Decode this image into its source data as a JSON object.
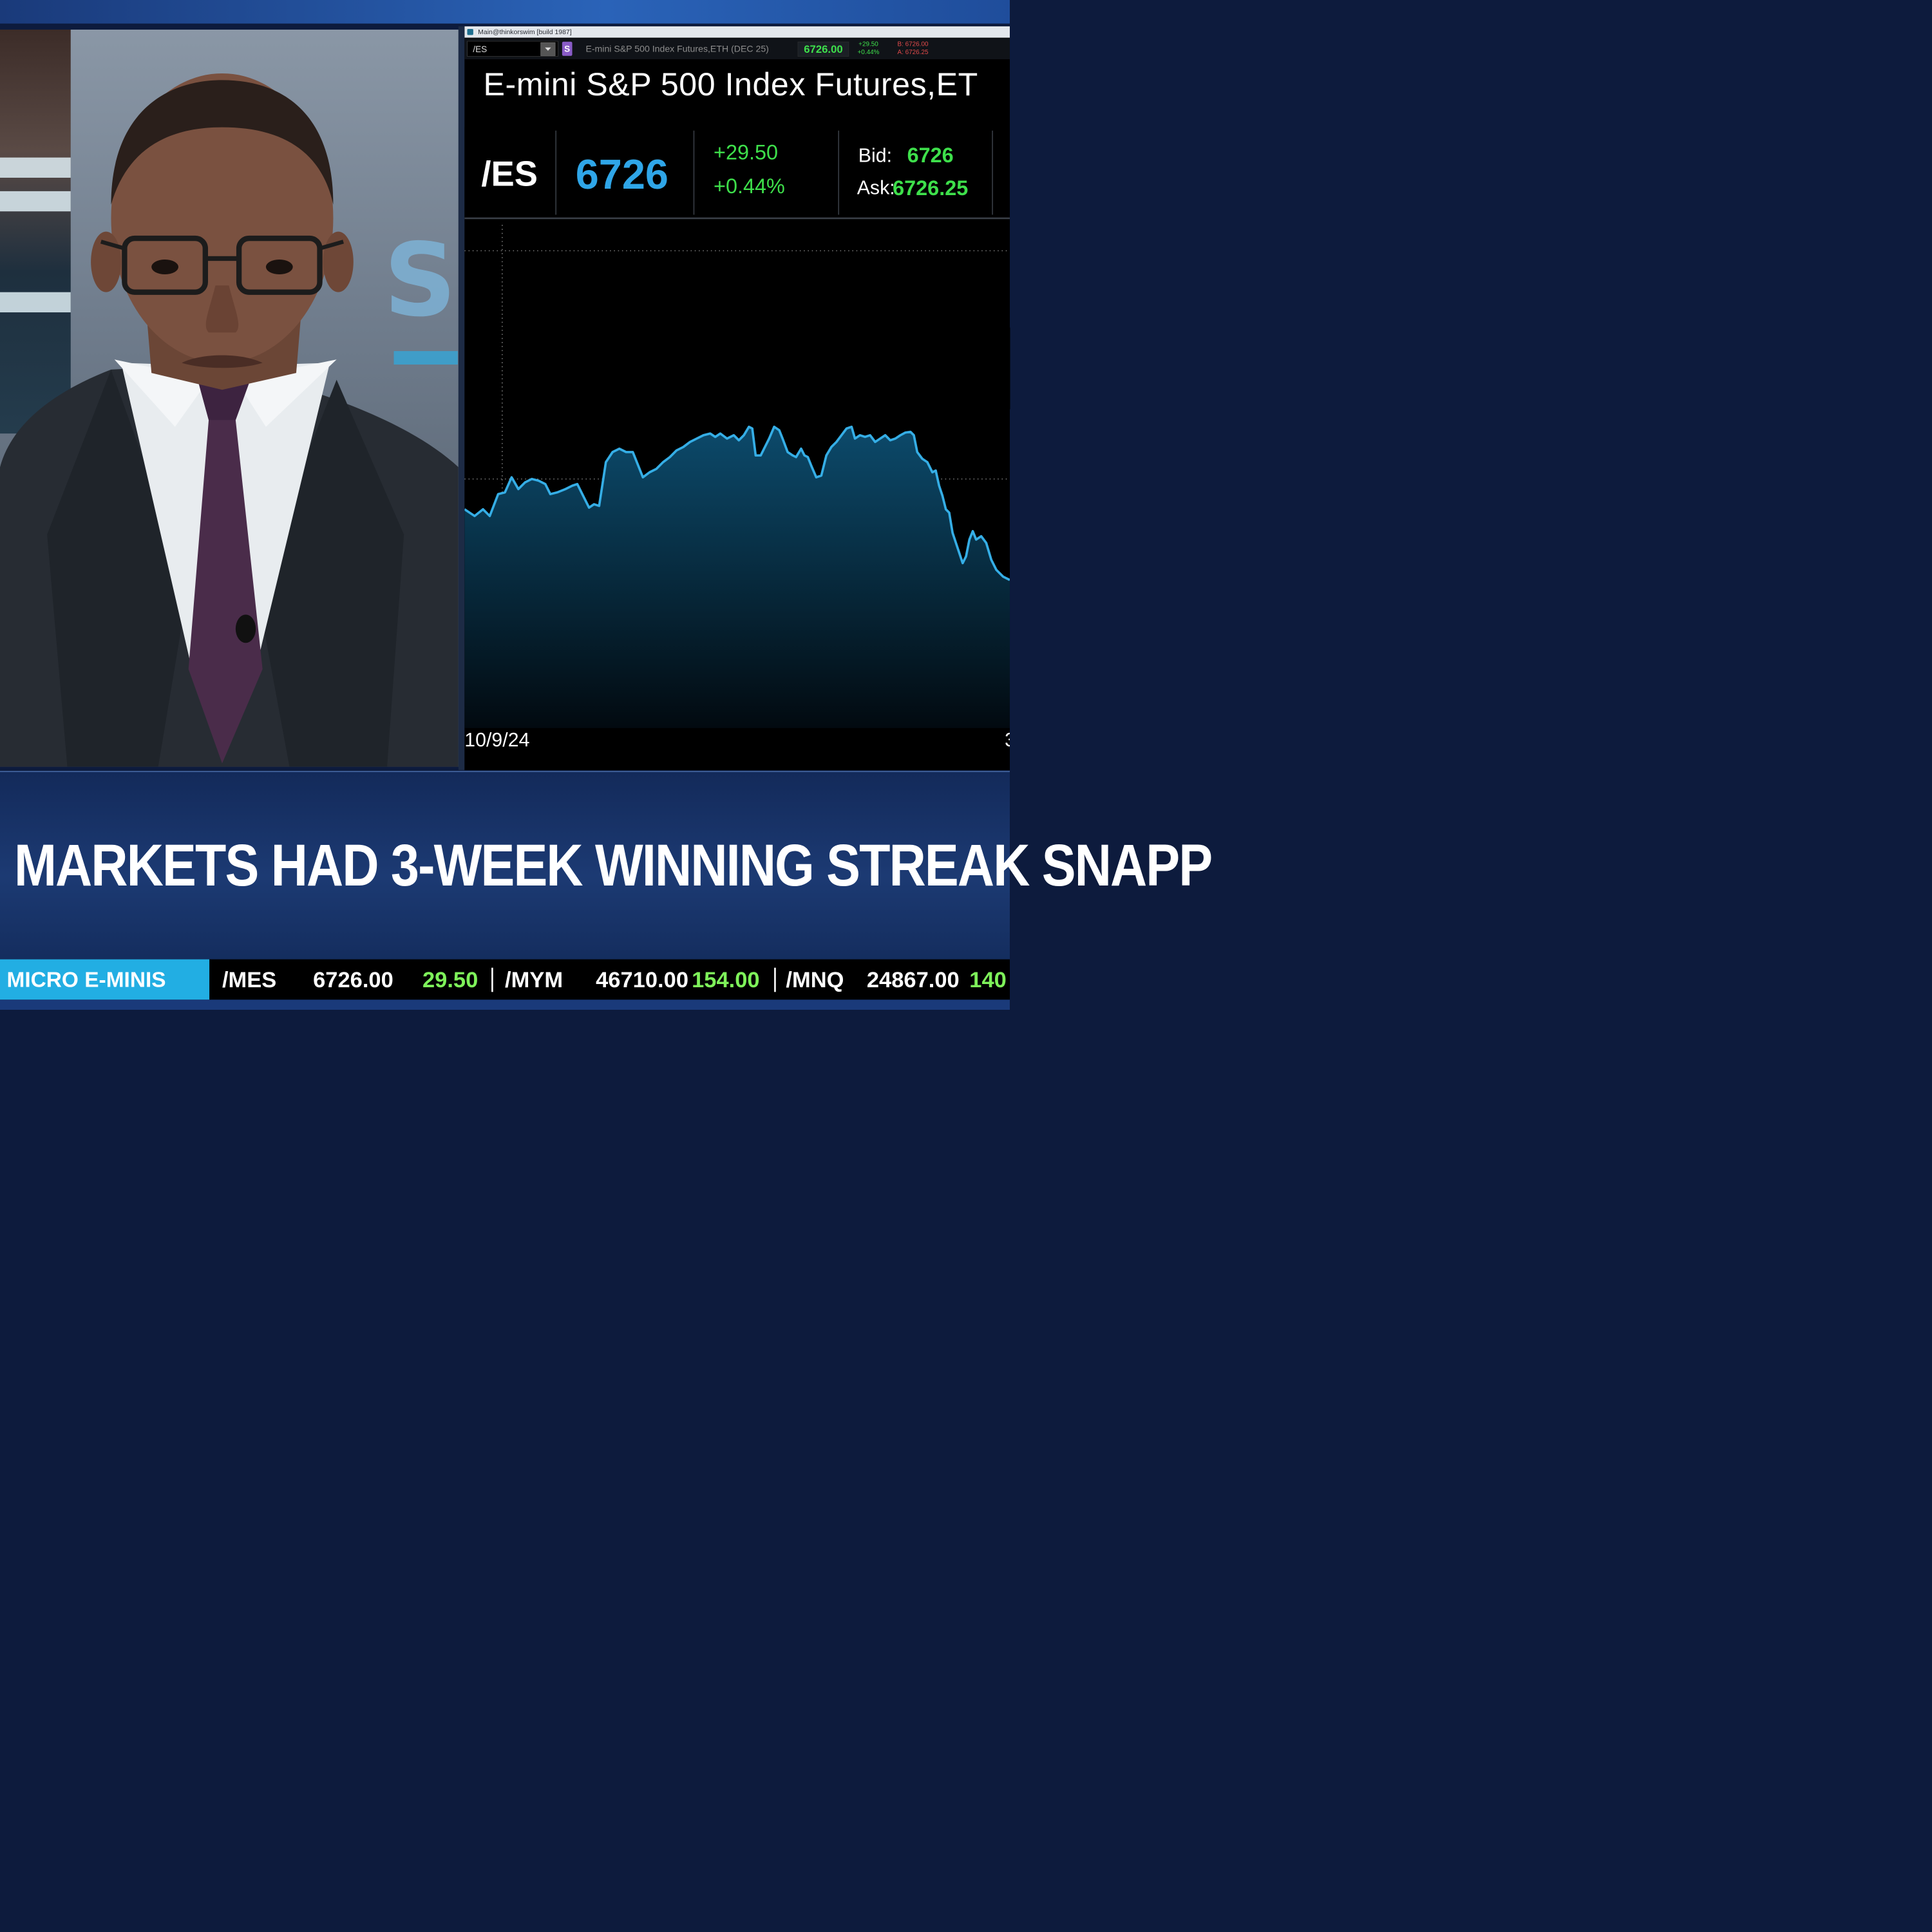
{
  "platform": {
    "window_title": "Main@thinkorswim [build 1987]",
    "symbol_input": "/ES",
    "link_badge": "S",
    "symbol_description": "E-mini S&P 500 Index Futures,ETH (DEC 25)",
    "last": "6726.00",
    "net_change": "+29.50",
    "pct_change": "+0.44%",
    "bid_line": "B: 6726.00",
    "ask_line": "A: 6726.25"
  },
  "quote": {
    "title": "E-mini S&P 500 Index Futures,ET",
    "symbol": "/ES",
    "last": "6726",
    "net_change": "+29.50",
    "pct_change": "+0.44%",
    "bid_label": "Bid:",
    "bid": "6726",
    "ask_label": "Ask:",
    "ask": "6726.25"
  },
  "chart_data": {
    "type": "area",
    "x_start_label": "10/9/24",
    "x_end_label_partial": "3",
    "grid": "dotted",
    "line_color": "#35aee6",
    "fill_color": "#0c3f5e"
  },
  "headline": "MARKETS HAD 3-WEEK WINNING STREAK SNAPP",
  "ticker": {
    "label": "MICRO E-MINIS",
    "items": [
      {
        "symbol": "/MES",
        "value": "6726.00",
        "change": "29.50"
      },
      {
        "symbol": "/MYM",
        "value": "46710.00",
        "change": "154.00"
      },
      {
        "symbol": "/MNQ",
        "value": "24867.00",
        "change": "140"
      }
    ]
  },
  "colors": {
    "accent": "#22aee3",
    "positive": "#3ee04b",
    "last_price": "#2fa6e8",
    "background_navy": "#132a5a"
  },
  "icons": [
    "link-icon",
    "dropdown-icon",
    "app-icon"
  ]
}
